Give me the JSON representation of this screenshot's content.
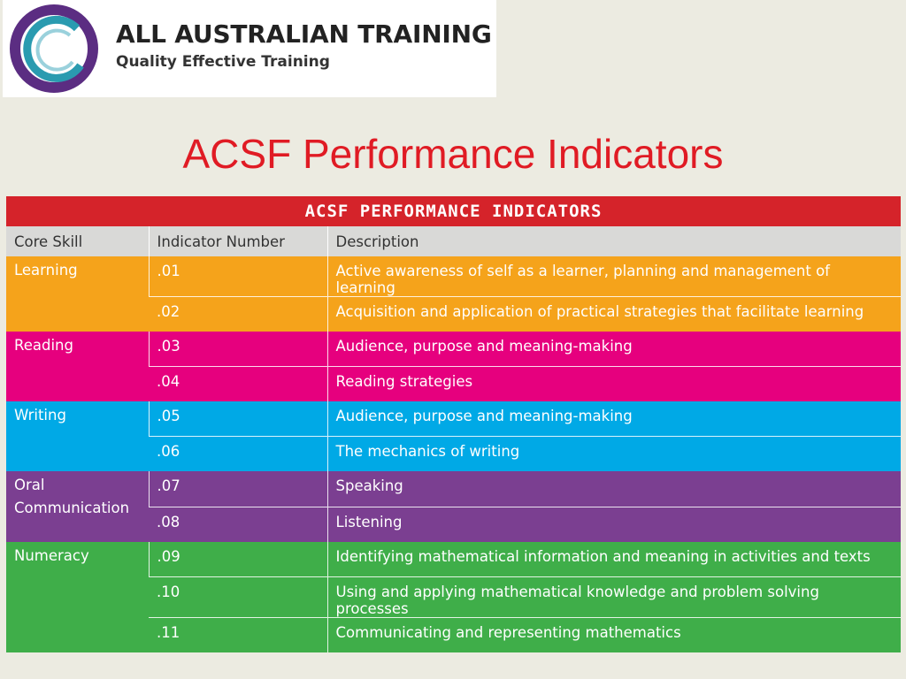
{
  "logo": {
    "name": "ALL AUSTRALIAN TRAINING",
    "tagline": "Quality Effective Training",
    "colors": {
      "ring_outer": "#5b2d82",
      "ring_inner": "#2a9bb0"
    }
  },
  "title": "ACSF Performance Indicators",
  "table": {
    "banner": "ACSF PERFORMANCE INDICATORS",
    "headers": [
      "Core Skill",
      "Indicator Number",
      "Description"
    ],
    "groups": [
      {
        "skill_lines": [
          "Learning"
        ],
        "color": "#f5a31b",
        "rows": [
          {
            "number": ".01",
            "description": "Active awareness of self as a learner, planning and management of learning"
          },
          {
            "number": ".02",
            "description": "Acquisition and application of practical strategies that facilitate learning"
          }
        ]
      },
      {
        "skill_lines": [
          "Reading"
        ],
        "color": "#e6007e",
        "rows": [
          {
            "number": ".03",
            "description": "Audience, purpose and meaning-making"
          },
          {
            "number": ".04",
            "description": "Reading strategies"
          }
        ]
      },
      {
        "skill_lines": [
          "Writing"
        ],
        "color": "#00a9e6",
        "rows": [
          {
            "number": ".05",
            "description": "Audience, purpose and meaning-making"
          },
          {
            "number": ".06",
            "description": "The mechanics of writing"
          }
        ]
      },
      {
        "skill_lines": [
          "Oral",
          "Communication"
        ],
        "color": "#7b3f91",
        "rows": [
          {
            "number": ".07",
            "description": "Speaking"
          },
          {
            "number": ".08",
            "description": "Listening"
          }
        ]
      },
      {
        "skill_lines": [
          "Numeracy"
        ],
        "color": "#3fae49",
        "rows": [
          {
            "number": ".09",
            "description": "Identifying mathematical information and meaning in activities and texts"
          },
          {
            "number": ".10",
            "description": "Using and applying mathematical knowledge and problem solving processes"
          },
          {
            "number": ".11",
            "description": "Communicating and representing mathematics"
          }
        ]
      }
    ]
  }
}
